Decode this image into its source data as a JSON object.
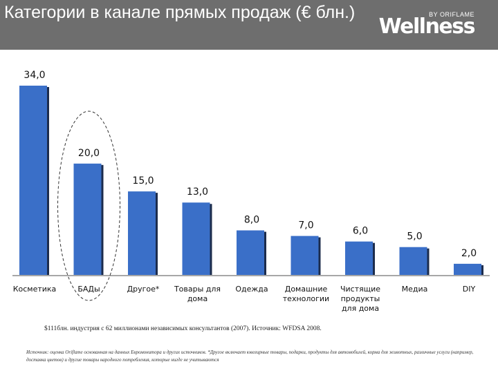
{
  "header": {
    "title": "Категории в канале прямых продаж (€ блн.)",
    "logo_top": "BY ORIFLAME",
    "logo_word": "Wellness"
  },
  "colors": {
    "header_bg": "#6e6e6e",
    "bar": "#3a6fc8",
    "bar_shadow": "#1c2c4c",
    "axis": "#8a8a8a"
  },
  "chart_data": {
    "type": "bar",
    "title": "Категории в канале прямых продаж (€ блн.)",
    "categories": [
      "Косметика",
      "БАДы",
      "Другое*",
      "Товары для дома",
      "Одежда",
      "Домашние технологии",
      "Чистящие продукты для дома",
      "Медиа",
      "DIY"
    ],
    "category_lines": [
      [
        "Косметика"
      ],
      [
        "БАДы"
      ],
      [
        "Другое*"
      ],
      [
        "Товары для",
        "дома"
      ],
      [
        "Одежда"
      ],
      [
        "Домашние",
        "технологии"
      ],
      [
        "Чистящие",
        "продукты",
        "для дома"
      ],
      [
        "Медиа"
      ],
      [
        "DIY"
      ]
    ],
    "values": [
      34.0,
      20.0,
      15.0,
      13.0,
      8.0,
      7.0,
      6.0,
      5.0,
      2.0
    ],
    "value_labels": [
      "34,0",
      "20,0",
      "15,0",
      "13,0",
      "8,0",
      "7,0",
      "6,0",
      "5,0",
      "2,0"
    ],
    "ylim": [
      0,
      34
    ],
    "xlabel": "",
    "ylabel": "",
    "highlighted_category": "БАДы"
  },
  "footnote": "$111блн. индустрия с 62 миллионами независимых консультантов (2007). Источник: WFDSA 2008.",
  "source": "Источник: оценка Oriflame основанная на данных Евромонитора и других источников. *Другое включает ювелирные товары, подарки, продукты для автомобилей, корма для животных, различные услуги (например, доставка цветов) и другие товары народного потребления, которые нигде не учитываются"
}
